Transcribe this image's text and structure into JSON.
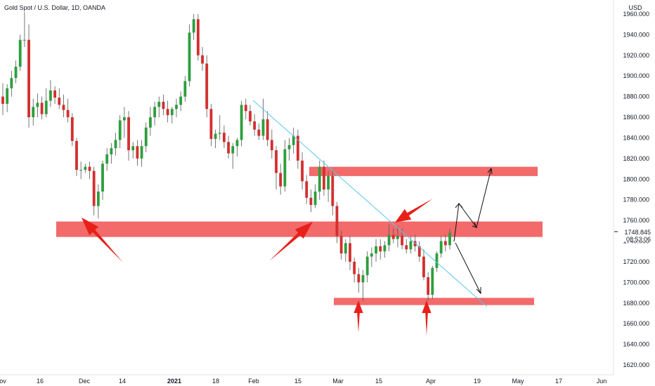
{
  "chart_data": {
    "type": "candlestick",
    "title": "Gold Spot / U.S. Dollar, 1D, OANDA",
    "currency": "USD",
    "last_price_label": "1748.845",
    "countdown_label": "08:53:06",
    "colors": {
      "up": "#26a69a",
      "up_body": "#2e9e3e",
      "down": "#d32f2f",
      "zone": "#f15a5a",
      "trendline": "#5ac8f0",
      "arrow": "#e8201a",
      "projection": "#111111",
      "axis_text": "#131722",
      "last_price_bg": "#ffffff"
    },
    "y_axis": {
      "min": 1610,
      "max": 1965,
      "ticks": [
        "1960.000",
        "1940.000",
        "1920.000",
        "1900.000",
        "1880.000",
        "1860.000",
        "1840.000",
        "1820.000",
        "1800.000",
        "1780.000",
        "1760.000",
        "1740.000",
        "1720.000",
        "1700.000",
        "1680.000",
        "1660.000",
        "1640.000",
        "1620.000"
      ]
    },
    "x_axis": {
      "labels": [
        "ov",
        "16",
        "Dec",
        "14",
        "2021",
        "18",
        "Feb",
        "15",
        "Mar",
        "15",
        "Apr",
        "19",
        "May",
        "17",
        "Jun"
      ]
    },
    "candles": [
      [
        1880,
        1893,
        1862,
        1873
      ],
      [
        1873,
        1892,
        1865,
        1888
      ],
      [
        1888,
        1905,
        1880,
        1898
      ],
      [
        1898,
        1915,
        1893,
        1909
      ],
      [
        1909,
        1940,
        1905,
        1935
      ],
      [
        1935,
        1962,
        1928,
        1935
      ],
      [
        1935,
        1950,
        1850,
        1860
      ],
      [
        1860,
        1878,
        1852,
        1870
      ],
      [
        1870,
        1883,
        1860,
        1874
      ],
      [
        1874,
        1880,
        1858,
        1863
      ],
      [
        1863,
        1888,
        1860,
        1876
      ],
      [
        1876,
        1896,
        1870,
        1886
      ],
      [
        1886,
        1890,
        1873,
        1879
      ],
      [
        1879,
        1888,
        1868,
        1872
      ],
      [
        1872,
        1882,
        1860,
        1867
      ],
      [
        1867,
        1878,
        1855,
        1860
      ],
      [
        1860,
        1864,
        1832,
        1837
      ],
      [
        1837,
        1840,
        1803,
        1809
      ],
      [
        1809,
        1817,
        1800,
        1809
      ],
      [
        1809,
        1815,
        1806,
        1812
      ],
      [
        1812,
        1817,
        1800,
        1808
      ],
      [
        1808,
        1812,
        1765,
        1774
      ],
      [
        1774,
        1795,
        1762,
        1788
      ],
      [
        1788,
        1818,
        1780,
        1815
      ],
      [
        1815,
        1830,
        1808,
        1824
      ],
      [
        1824,
        1835,
        1815,
        1830
      ],
      [
        1830,
        1845,
        1823,
        1838
      ],
      [
        1838,
        1862,
        1830,
        1857
      ],
      [
        1857,
        1870,
        1840,
        1860
      ],
      [
        1860,
        1866,
        1818,
        1828
      ],
      [
        1828,
        1836,
        1820,
        1832
      ],
      [
        1832,
        1838,
        1813,
        1820
      ],
      [
        1820,
        1838,
        1812,
        1832
      ],
      [
        1832,
        1855,
        1826,
        1850
      ],
      [
        1850,
        1870,
        1842,
        1860
      ],
      [
        1860,
        1875,
        1852,
        1870
      ],
      [
        1870,
        1880,
        1860,
        1875
      ],
      [
        1875,
        1882,
        1862,
        1868
      ],
      [
        1868,
        1876,
        1855,
        1862
      ],
      [
        1862,
        1870,
        1854,
        1868
      ],
      [
        1868,
        1878,
        1860,
        1872
      ],
      [
        1872,
        1885,
        1866,
        1880
      ],
      [
        1880,
        1900,
        1875,
        1895
      ],
      [
        1895,
        1950,
        1890,
        1942
      ],
      [
        1942,
        1960,
        1935,
        1955
      ],
      [
        1955,
        1960,
        1915,
        1920
      ],
      [
        1920,
        1928,
        1905,
        1912
      ],
      [
        1912,
        1920,
        1860,
        1868
      ],
      [
        1868,
        1873,
        1832,
        1839
      ],
      [
        1839,
        1848,
        1830,
        1844
      ],
      [
        1844,
        1862,
        1838,
        1845
      ],
      [
        1845,
        1852,
        1830,
        1836
      ],
      [
        1836,
        1842,
        1820,
        1825
      ],
      [
        1825,
        1835,
        1810,
        1832
      ],
      [
        1832,
        1840,
        1822,
        1838
      ],
      [
        1838,
        1876,
        1832,
        1872
      ],
      [
        1872,
        1878,
        1858,
        1866
      ],
      [
        1866,
        1872,
        1852,
        1856
      ],
      [
        1856,
        1863,
        1842,
        1848
      ],
      [
        1848,
        1854,
        1838,
        1842
      ],
      [
        1842,
        1878,
        1838,
        1858
      ],
      [
        1858,
        1866,
        1832,
        1838
      ],
      [
        1838,
        1848,
        1820,
        1828
      ],
      [
        1828,
        1832,
        1790,
        1806
      ],
      [
        1806,
        1815,
        1785,
        1793
      ],
      [
        1793,
        1838,
        1788,
        1829
      ],
      [
        1829,
        1840,
        1818,
        1833
      ],
      [
        1833,
        1850,
        1825,
        1842
      ],
      [
        1842,
        1848,
        1810,
        1818
      ],
      [
        1818,
        1826,
        1790,
        1798
      ],
      [
        1798,
        1804,
        1776,
        1782
      ],
      [
        1782,
        1790,
        1768,
        1775
      ],
      [
        1775,
        1795,
        1772,
        1788
      ],
      [
        1788,
        1818,
        1780,
        1812
      ],
      [
        1812,
        1818,
        1784,
        1790
      ],
      [
        1790,
        1808,
        1778,
        1803
      ],
      [
        1803,
        1808,
        1765,
        1774
      ],
      [
        1774,
        1778,
        1738,
        1745
      ],
      [
        1745,
        1750,
        1722,
        1728
      ],
      [
        1728,
        1742,
        1720,
        1738
      ],
      [
        1738,
        1745,
        1712,
        1720
      ],
      [
        1720,
        1724,
        1700,
        1708
      ],
      [
        1708,
        1714,
        1690,
        1700
      ],
      [
        1700,
        1712,
        1682,
        1707
      ],
      [
        1707,
        1730,
        1700,
        1725
      ],
      [
        1725,
        1734,
        1715,
        1728
      ],
      [
        1728,
        1742,
        1720,
        1735
      ],
      [
        1735,
        1742,
        1722,
        1730
      ],
      [
        1730,
        1740,
        1724,
        1736
      ],
      [
        1736,
        1756,
        1730,
        1746
      ],
      [
        1746,
        1752,
        1738,
        1742
      ],
      [
        1742,
        1754,
        1734,
        1745
      ],
      [
        1745,
        1752,
        1732,
        1736
      ],
      [
        1736,
        1742,
        1728,
        1732
      ],
      [
        1732,
        1745,
        1728,
        1740
      ],
      [
        1740,
        1746,
        1730,
        1735
      ],
      [
        1735,
        1740,
        1720,
        1725
      ],
      [
        1725,
        1732,
        1702,
        1705
      ],
      [
        1705,
        1710,
        1682,
        1688
      ],
      [
        1688,
        1716,
        1684,
        1714
      ],
      [
        1714,
        1730,
        1710,
        1728
      ],
      [
        1728,
        1745,
        1724,
        1740
      ],
      [
        1740,
        1746,
        1730,
        1736
      ],
      [
        1736,
        1752,
        1732,
        1748
      ]
    ],
    "support_resistance_zones": [
      {
        "from": 1803,
        "to": 1812,
        "start": 70,
        "end": "chart_end"
      },
      {
        "from": 1744,
        "to": 1759,
        "start": 0,
        "end": "chart_end"
      },
      {
        "from": 1678,
        "to": 1685,
        "start": 77,
        "end": "chart_end"
      }
    ]
  }
}
